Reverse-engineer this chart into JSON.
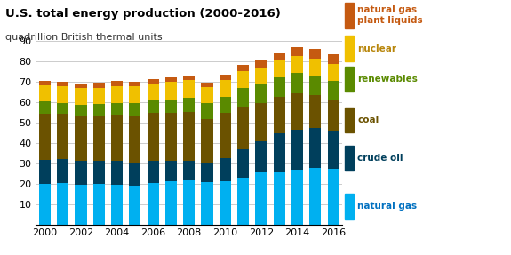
{
  "years": [
    2000,
    2001,
    2002,
    2003,
    2004,
    2005,
    2006,
    2007,
    2008,
    2009,
    2010,
    2011,
    2012,
    2013,
    2014,
    2015,
    2016
  ],
  "natural_gas": [
    19.7,
    20.2,
    19.5,
    19.9,
    19.5,
    19.0,
    20.2,
    21.0,
    21.4,
    20.6,
    21.0,
    23.0,
    25.3,
    25.6,
    26.6,
    27.8,
    27.1
  ],
  "crude_oil": [
    11.9,
    11.9,
    11.7,
    11.4,
    11.5,
    11.2,
    10.9,
    10.2,
    9.9,
    9.9,
    11.6,
    13.9,
    15.5,
    19.0,
    19.9,
    19.7,
    18.6
  ],
  "coal": [
    22.7,
    22.2,
    21.7,
    21.9,
    22.7,
    23.2,
    23.5,
    23.5,
    23.8,
    21.2,
    21.9,
    20.9,
    18.6,
    18.0,
    17.9,
    15.9,
    14.9
  ],
  "renewables": [
    5.9,
    5.3,
    5.7,
    5.7,
    5.7,
    6.1,
    6.3,
    6.6,
    7.2,
    7.6,
    8.1,
    9.1,
    9.3,
    9.3,
    9.7,
    9.7,
    9.8
  ],
  "nuclear": [
    7.9,
    8.0,
    8.1,
    7.9,
    8.2,
    8.2,
    8.2,
    8.5,
    8.5,
    8.1,
    8.4,
    8.3,
    8.1,
    8.3,
    8.4,
    8.3,
    8.4
  ],
  "plant_liquids": [
    2.4,
    2.5,
    2.4,
    2.5,
    2.6,
    2.4,
    2.3,
    2.3,
    2.3,
    2.3,
    2.5,
    2.9,
    3.4,
    3.7,
    4.4,
    4.7,
    4.6
  ],
  "colors": {
    "natural_gas": "#00b0f0",
    "crude_oil": "#003f5c",
    "coal": "#6b5200",
    "renewables": "#5a8a00",
    "nuclear": "#f0c000",
    "plant_liquids": "#c55a11"
  },
  "legend_labels": {
    "natural_gas": "natural gas",
    "crude_oil": "crude oil",
    "coal": "coal",
    "renewables": "renewables",
    "nuclear": "nuclear",
    "plant_liquids": "natural gas\nplant liquids"
  },
  "title": "U.S. total energy production (2000-2016)",
  "subtitle": "quadrillion British thermal units",
  "ylim": [
    0,
    90
  ],
  "yticks": [
    0,
    10,
    20,
    30,
    40,
    50,
    60,
    70,
    80,
    90
  ],
  "background_color": "#ffffff"
}
